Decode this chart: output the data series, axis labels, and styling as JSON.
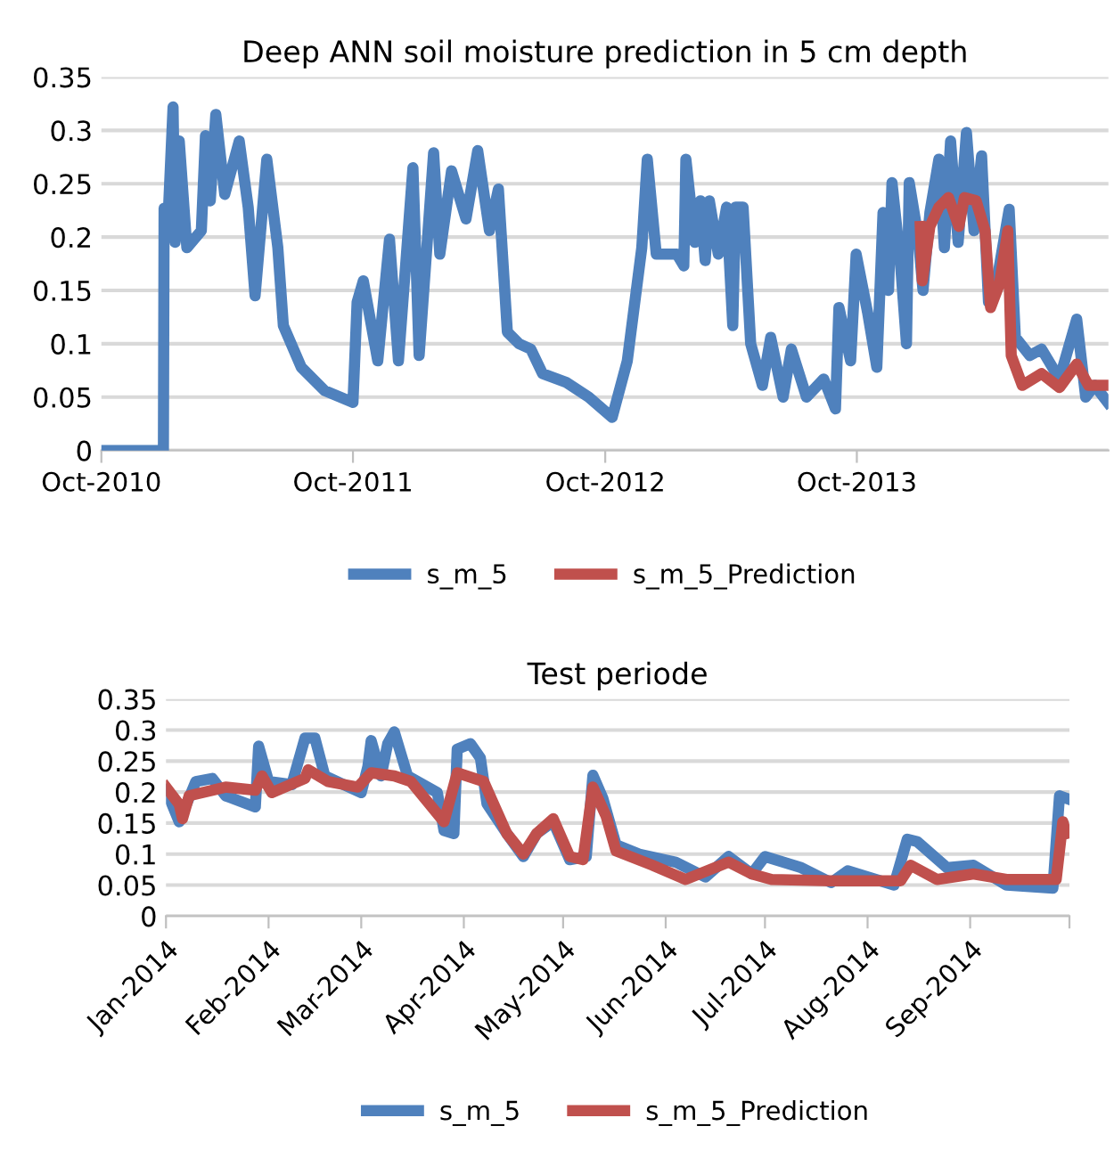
{
  "chart_data": [
    {
      "type": "line",
      "title": "Deep ANN soil moisture prediction in 5 cm depth",
      "xlim": [
        "2010-10-01",
        "2014-10-01"
      ],
      "xticks": [
        {
          "value": "2010-10-01",
          "label": "Oct-2010"
        },
        {
          "value": "2011-10-01",
          "label": "Oct-2011"
        },
        {
          "value": "2012-10-01",
          "label": "Oct-2012"
        },
        {
          "value": "2013-10-01",
          "label": "Oct-2013"
        }
      ],
      "ylim": [
        0,
        0.35
      ],
      "yticks": [
        0,
        0.05,
        0.1,
        0.15,
        0.2,
        0.25,
        0.3,
        0.35
      ],
      "grid": "y",
      "legend": "bottom",
      "marker": "none",
      "line_style": "solid",
      "series": [
        {
          "name": "s_m_5",
          "color": "#4f81bd",
          "x": [
            "2010-10-01",
            "2010-12-30",
            "2010-12-31",
            "2011-01-05",
            "2011-01-13",
            "2011-01-16",
            "2011-01-22",
            "2011-02-02",
            "2011-02-23",
            "2011-03-01",
            "2011-03-08",
            "2011-03-16",
            "2011-03-29",
            "2011-04-19",
            "2011-05-02",
            "2011-05-12",
            "2011-05-29",
            "2011-06-14",
            "2011-06-22",
            "2011-07-18",
            "2011-08-21",
            "2011-10-01",
            "2011-10-07",
            "2011-10-16",
            "2011-11-06",
            "2011-11-23",
            "2011-12-06",
            "2011-12-27",
            "2012-01-05",
            "2012-01-26",
            "2012-02-04",
            "2012-02-21",
            "2012-03-13",
            "2012-03-30",
            "2012-04-16",
            "2012-04-29",
            "2012-05-12",
            "2012-05-29",
            "2012-06-15",
            "2012-07-02",
            "2012-08-05",
            "2012-09-07",
            "2012-10-11",
            "2012-11-02",
            "2012-11-23",
            "2012-12-01",
            "2012-12-14",
            "2013-01-13",
            "2013-01-23",
            "2013-01-26",
            "2013-02-08",
            "2013-02-16",
            "2013-02-23",
            "2013-03-01",
            "2013-03-14",
            "2013-03-26",
            "2013-04-04",
            "2013-04-08",
            "2013-04-19",
            "2013-04-30",
            "2013-05-17",
            "2013-05-29",
            "2013-06-16",
            "2013-06-28",
            "2013-07-20",
            "2013-08-14",
            "2013-08-31",
            "2013-09-05",
            "2013-09-22",
            "2013-09-30",
            "2013-10-17",
            "2013-10-30",
            "2013-11-08",
            "2013-11-16",
            "2013-11-21",
            "2013-12-03",
            "2013-12-12",
            "2013-12-16",
            "2013-12-29",
            "2014-01-05",
            "2014-01-15",
            "2014-01-28",
            "2014-02-05",
            "2014-02-14",
            "2014-02-25",
            "2014-03-09",
            "2014-03-20",
            "2014-03-31",
            "2014-04-10",
            "2014-04-23",
            "2014-05-10",
            "2014-05-19",
            "2014-06-09",
            "2014-06-26",
            "2014-07-22",
            "2014-08-16",
            "2014-08-29",
            "2014-09-11",
            "2014-09-30"
          ],
          "values": [
            0,
            0,
            0.227,
            0.206,
            0.322,
            0.195,
            0.29,
            0.19,
            0.206,
            0.295,
            0.234,
            0.315,
            0.24,
            0.29,
            0.228,
            0.145,
            0.273,
            0.19,
            0.117,
            0.078,
            0.056,
            0.045,
            0.139,
            0.159,
            0.084,
            0.198,
            0.084,
            0.265,
            0.089,
            0.279,
            0.184,
            0.262,
            0.217,
            0.281,
            0.206,
            0.245,
            0.111,
            0.1,
            0.095,
            0.072,
            0.064,
            0.05,
            0.031,
            0.084,
            0.19,
            0.273,
            0.184,
            0.184,
            0.173,
            0.273,
            0.195,
            0.234,
            0.178,
            0.234,
            0.184,
            0.228,
            0.117,
            0.228,
            0.228,
            0.1,
            0.061,
            0.106,
            0.05,
            0.095,
            0.05,
            0.067,
            0.039,
            0.134,
            0.084,
            0.184,
            0.128,
            0.078,
            0.223,
            0.15,
            0.251,
            0.178,
            0.1,
            0.251,
            0.2,
            0.15,
            0.223,
            0.273,
            0.19,
            0.29,
            0.195,
            0.298,
            0.206,
            0.276,
            0.139,
            0.162,
            0.226,
            0.106,
            0.089,
            0.095,
            0.067,
            0.123,
            0.05,
            0.061,
            0.045
          ]
        },
        {
          "name": "s_m_5_Prediction",
          "color": "#c0504d",
          "x": [
            "2014-01-01",
            "2014-01-04",
            "2014-01-15",
            "2014-01-28",
            "2014-02-11",
            "2014-02-26",
            "2014-03-06",
            "2014-03-23",
            "2014-04-05",
            "2014-04-13",
            "2014-04-26",
            "2014-05-08",
            "2014-05-13",
            "2014-05-29",
            "2014-06-26",
            "2014-07-22",
            "2014-08-16",
            "2014-09-02",
            "2014-09-30"
          ],
          "values": [
            0.21,
            0.159,
            0.21,
            0.228,
            0.237,
            0.21,
            0.237,
            0.234,
            0.206,
            0.134,
            0.156,
            0.206,
            0.089,
            0.061,
            0.072,
            0.059,
            0.081,
            0.061,
            0.061
          ]
        }
      ]
    },
    {
      "type": "line",
      "title": "Test periode",
      "xlim": [
        "2014-01-01",
        "2014-10-01"
      ],
      "xticks": [
        {
          "value": "2014-01-01",
          "label": "Jan-2014"
        },
        {
          "value": "2014-02-01",
          "label": "Feb-2014"
        },
        {
          "value": "2014-03-01",
          "label": "Mar-2014"
        },
        {
          "value": "2014-04-01",
          "label": "Apr-2014"
        },
        {
          "value": "2014-05-01",
          "label": "May-2014"
        },
        {
          "value": "2014-06-01",
          "label": "Jun-2014"
        },
        {
          "value": "2014-07-01",
          "label": "Jul-2014"
        },
        {
          "value": "2014-08-01",
          "label": "Aug-2014"
        },
        {
          "value": "2014-09-01",
          "label": "Sep-2014"
        },
        {
          "value": "2014-10-01",
          "label": null
        }
      ],
      "ylim": [
        0,
        0.35
      ],
      "yticks": [
        0,
        0.05,
        0.1,
        0.15,
        0.2,
        0.25,
        0.3,
        0.35
      ],
      "grid": "y",
      "legend": "bottom",
      "marker": "none",
      "line_style": "solid",
      "series": [
        {
          "name": "s_m_5",
          "color": "#4f81bd",
          "x": [
            "2014-01-01",
            "2014-01-05",
            "2014-01-10",
            "2014-01-15",
            "2014-01-19",
            "2014-01-28",
            "2014-01-29",
            "2014-02-01",
            "2014-02-08",
            "2014-02-12",
            "2014-02-15",
            "2014-02-18",
            "2014-03-01",
            "2014-03-03",
            "2014-03-04",
            "2014-03-07",
            "2014-03-09",
            "2014-03-11",
            "2014-03-15",
            "2014-03-24",
            "2014-03-26",
            "2014-03-29",
            "2014-03-30",
            "2014-04-03",
            "2014-04-06",
            "2014-04-08",
            "2014-04-14",
            "2014-04-19",
            "2014-04-23",
            "2014-04-28",
            "2014-05-03",
            "2014-05-08",
            "2014-05-10",
            "2014-05-13",
            "2014-05-17",
            "2014-05-24",
            "2014-06-04",
            "2014-06-13",
            "2014-06-20",
            "2014-06-27",
            "2014-07-01",
            "2014-07-12",
            "2014-07-21",
            "2014-07-26",
            "2014-08-09",
            "2014-08-13",
            "2014-08-16",
            "2014-08-25",
            "2014-09-02",
            "2014-09-12",
            "2014-09-26",
            "2014-09-28",
            "2014-09-30"
          ],
          "values": [
            0.204,
            0.152,
            0.217,
            0.222,
            0.194,
            0.176,
            0.274,
            0.217,
            0.212,
            0.287,
            0.287,
            0.226,
            0.199,
            0.241,
            0.283,
            0.226,
            0.278,
            0.297,
            0.226,
            0.199,
            0.138,
            0.133,
            0.269,
            0.278,
            0.255,
            0.181,
            0.133,
            0.096,
            0.133,
            0.152,
            0.091,
            0.096,
            0.227,
            0.19,
            0.115,
            0.1,
            0.087,
            0.063,
            0.096,
            0.068,
            0.096,
            0.078,
            0.054,
            0.073,
            0.05,
            0.124,
            0.12,
            0.078,
            0.082,
            0.05,
            0.045,
            0.194,
            0.19
          ]
        },
        {
          "name": "s_m_5_Prediction",
          "color": "#c0504d",
          "x": [
            "2014-01-01",
            "2014-01-05",
            "2014-01-06",
            "2014-01-08",
            "2014-01-19",
            "2014-01-28",
            "2014-01-30",
            "2014-02-02",
            "2014-02-12",
            "2014-02-13",
            "2014-02-19",
            "2014-02-28",
            "2014-03-04",
            "2014-03-11",
            "2014-03-16",
            "2014-03-26",
            "2014-03-30",
            "2014-04-07",
            "2014-04-14",
            "2014-04-19",
            "2014-04-23",
            "2014-04-28",
            "2014-05-03",
            "2014-05-07",
            "2014-05-10",
            "2014-05-14",
            "2014-05-17",
            "2014-05-28",
            "2014-06-07",
            "2014-06-20",
            "2014-06-27",
            "2014-07-03",
            "2014-07-21",
            "2014-08-11",
            "2014-08-14",
            "2014-08-22",
            "2014-09-02",
            "2014-09-12",
            "2014-09-27",
            "2014-09-29",
            "2014-09-30"
          ],
          "values": [
            0.208,
            0.18,
            0.157,
            0.194,
            0.208,
            0.203,
            0.226,
            0.199,
            0.222,
            0.236,
            0.217,
            0.208,
            0.231,
            0.226,
            0.217,
            0.152,
            0.231,
            0.217,
            0.133,
            0.1,
            0.133,
            0.157,
            0.096,
            0.091,
            0.208,
            0.161,
            0.105,
            0.082,
            0.059,
            0.087,
            0.068,
            0.059,
            0.057,
            0.057,
            0.082,
            0.059,
            0.068,
            0.059,
            0.059,
            0.152,
            0.133
          ]
        }
      ]
    }
  ]
}
